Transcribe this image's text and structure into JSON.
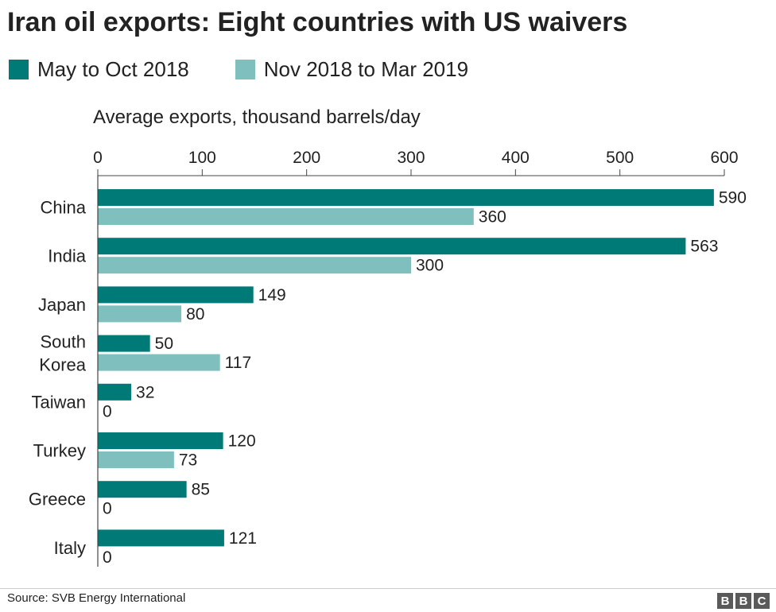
{
  "title": "Iran oil exports: Eight countries with US waivers",
  "legend": [
    {
      "label": "May to Oct 2018",
      "color": "#007A76"
    },
    {
      "label": "Nov 2018 to Mar 2019",
      "color": "#7FBFBD"
    }
  ],
  "subtitle": "Average exports, thousand barrels/day",
  "source": "Source: SVB Energy International",
  "logo": [
    "B",
    "B",
    "C"
  ],
  "chart_data": {
    "type": "bar",
    "orientation": "horizontal",
    "categories": [
      [
        "China"
      ],
      [
        "India"
      ],
      [
        "Japan"
      ],
      [
        "South",
        "Korea"
      ],
      [
        "Taiwan"
      ],
      [
        "Turkey"
      ],
      [
        "Greece"
      ],
      [
        "Italy"
      ]
    ],
    "series": [
      {
        "name": "May to Oct 2018",
        "color": "#007A76",
        "values": [
          590,
          563,
          149,
          50,
          32,
          120,
          85,
          121
        ]
      },
      {
        "name": "Nov 2018 to Mar 2019",
        "color": "#7FBFBD",
        "values": [
          360,
          300,
          80,
          117,
          0,
          73,
          0,
          0
        ]
      }
    ],
    "xlim": [
      0,
      600
    ],
    "ticks": [
      0,
      100,
      200,
      300,
      400,
      500,
      600
    ],
    "xlabel": "Average exports, thousand barrels/day",
    "ylabel": "",
    "axis_position": "top",
    "data_labels": true,
    "grid": false
  }
}
